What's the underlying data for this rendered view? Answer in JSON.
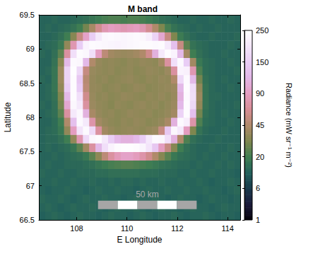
{
  "chart_data": {
    "type": "heatmap",
    "title": "M band",
    "x_label": "E Longitude",
    "y_label": "Latitude",
    "xlim": [
      106.5,
      114.5
    ],
    "xticks": [
      108,
      110,
      112,
      114
    ],
    "ylim": [
      66.5,
      69.5
    ],
    "yticks": [
      66.5,
      67,
      67.5,
      68,
      68.5,
      69,
      69.5
    ],
    "grid": false,
    "x": [
      106.625,
      106.875,
      107.125,
      107.375,
      107.625,
      107.875,
      108.125,
      108.375,
      108.625,
      108.875,
      109.125,
      109.375,
      109.625,
      109.875,
      110.125,
      110.375,
      110.625,
      110.875,
      111.125,
      111.375,
      111.625,
      111.875,
      112.125,
      112.375,
      112.625,
      112.875,
      113.125,
      113.375,
      113.625,
      113.875,
      114.125,
      114.375
    ],
    "y": [
      66.5625,
      66.6875,
      66.8125,
      66.9375,
      67.0625,
      67.1875,
      67.3125,
      67.4375,
      67.5625,
      67.6875,
      67.8125,
      67.9375,
      68.0625,
      68.1875,
      68.3125,
      68.4375,
      68.5625,
      68.6875,
      68.8125,
      68.9375,
      69.0625,
      69.1875,
      69.3125,
      69.4375
    ],
    "values": [
      [
        11,
        12,
        13,
        12,
        11,
        12,
        13,
        12,
        12,
        11,
        12,
        13,
        12,
        12,
        11,
        12,
        13,
        12,
        11,
        12,
        12,
        13,
        12,
        11,
        12,
        12,
        13,
        12,
        11,
        12,
        12,
        11
      ],
      [
        12,
        13,
        12,
        11,
        12,
        13,
        12,
        12,
        13,
        12,
        11,
        12,
        13,
        12,
        12,
        13,
        12,
        11,
        12,
        13,
        12,
        12,
        11,
        12,
        13,
        12,
        12,
        11,
        12,
        13,
        12,
        12
      ],
      [
        13,
        12,
        12,
        13,
        12,
        11,
        12,
        13,
        12,
        12,
        13,
        12,
        12,
        11,
        12,
        13,
        12,
        12,
        13,
        12,
        11,
        12,
        13,
        12,
        12,
        11,
        12,
        13,
        12,
        12,
        11,
        12
      ],
      [
        12,
        11,
        12,
        12,
        13,
        12,
        12,
        11,
        12,
        13,
        12,
        12,
        13,
        12,
        12,
        11,
        12,
        13,
        12,
        12,
        13,
        12,
        12,
        13,
        12,
        12,
        13,
        12,
        12,
        11,
        12,
        13
      ],
      [
        12,
        12,
        13,
        12,
        12,
        13,
        12,
        12,
        13,
        12,
        12,
        13,
        12,
        13,
        13,
        12,
        13,
        12,
        12,
        13,
        12,
        12,
        13,
        12,
        12,
        13,
        12,
        11,
        12,
        12,
        13,
        12
      ],
      [
        13,
        12,
        12,
        13,
        12,
        12,
        13,
        13,
        13,
        14,
        14,
        15,
        15,
        15,
        15,
        15,
        14,
        14,
        14,
        13,
        13,
        13,
        12,
        12,
        13,
        12,
        12,
        13,
        12,
        12,
        12,
        11
      ],
      [
        12,
        13,
        12,
        12,
        13,
        13,
        13,
        14,
        15,
        17,
        19,
        21,
        22,
        23,
        23,
        22,
        21,
        20,
        18,
        16,
        15,
        14,
        13,
        13,
        12,
        13,
        12,
        12,
        13,
        12,
        13,
        12
      ],
      [
        12,
        12,
        13,
        12,
        13,
        14,
        15,
        18,
        24,
        34,
        50,
        70,
        85,
        95,
        95,
        88,
        75,
        60,
        45,
        32,
        24,
        18,
        15,
        14,
        13,
        12,
        13,
        12,
        12,
        13,
        12,
        12
      ],
      [
        12,
        13,
        12,
        13,
        14,
        17,
        24,
        40,
        70,
        120,
        180,
        220,
        240,
        245,
        245,
        240,
        225,
        190,
        140,
        90,
        55,
        32,
        20,
        15,
        13,
        12,
        12,
        13,
        12,
        12,
        13,
        12
      ],
      [
        12,
        13,
        13,
        15,
        20,
        35,
        80,
        170,
        230,
        240,
        200,
        150,
        120,
        110,
        110,
        120,
        150,
        200,
        235,
        230,
        180,
        110,
        45,
        22,
        15,
        13,
        12,
        12,
        13,
        12,
        12,
        12
      ],
      [
        12,
        13,
        14,
        18,
        35,
        90,
        190,
        235,
        170,
        70,
        40,
        36,
        34,
        35,
        36,
        35,
        34,
        36,
        38,
        55,
        140,
        230,
        200,
        90,
        30,
        16,
        13,
        12,
        12,
        13,
        12,
        12
      ],
      [
        12,
        12,
        14,
        20,
        45,
        130,
        235,
        200,
        75,
        40,
        36,
        34,
        33,
        35,
        34,
        36,
        35,
        33,
        34,
        36,
        42,
        110,
        235,
        210,
        75,
        22,
        14,
        13,
        12,
        12,
        13,
        12
      ],
      [
        12,
        13,
        15,
        24,
        70,
        200,
        230,
        110,
        42,
        36,
        34,
        35,
        33,
        34,
        36,
        35,
        34,
        35,
        33,
        34,
        36,
        40,
        160,
        240,
        130,
        28,
        15,
        13,
        12,
        13,
        12,
        12
      ],
      [
        13,
        12,
        15,
        28,
        100,
        230,
        200,
        70,
        38,
        35,
        34,
        32,
        35,
        34,
        33,
        35,
        36,
        34,
        35,
        33,
        35,
        38,
        120,
        240,
        170,
        35,
        16,
        13,
        12,
        12,
        12,
        13
      ],
      [
        12,
        13,
        16,
        30,
        120,
        240,
        180,
        60,
        37,
        34,
        35,
        33,
        34,
        36,
        35,
        34,
        33,
        35,
        34,
        36,
        34,
        37,
        110,
        235,
        180,
        38,
        16,
        13,
        13,
        12,
        12,
        12
      ],
      [
        12,
        13,
        17,
        35,
        150,
        240,
        150,
        50,
        36,
        35,
        33,
        34,
        35,
        33,
        34,
        36,
        35,
        33,
        34,
        35,
        36,
        38,
        120,
        240,
        175,
        35,
        16,
        13,
        12,
        12,
        13,
        12
      ],
      [
        13,
        12,
        17,
        38,
        160,
        240,
        140,
        48,
        36,
        34,
        35,
        33,
        34,
        35,
        36,
        34,
        33,
        35,
        34,
        36,
        35,
        45,
        170,
        235,
        120,
        28,
        15,
        13,
        12,
        13,
        12,
        12
      ],
      [
        12,
        13,
        17,
        38,
        160,
        245,
        170,
        55,
        37,
        35,
        34,
        35,
        33,
        34,
        35,
        33,
        34,
        36,
        35,
        34,
        38,
        70,
        220,
        215,
        80,
        22,
        14,
        13,
        12,
        12,
        12,
        13
      ],
      [
        12,
        12,
        16,
        32,
        120,
        235,
        230,
        120,
        45,
        36,
        34,
        35,
        34,
        33,
        35,
        34,
        36,
        35,
        34,
        40,
        70,
        180,
        235,
        150,
        40,
        18,
        14,
        13,
        12,
        12,
        13,
        12
      ],
      [
        13,
        12,
        15,
        24,
        70,
        180,
        240,
        230,
        180,
        90,
        50,
        40,
        38,
        37,
        38,
        40,
        45,
        60,
        110,
        200,
        240,
        220,
        120,
        40,
        20,
        15,
        13,
        12,
        12,
        13,
        12,
        12
      ],
      [
        12,
        13,
        14,
        18,
        35,
        80,
        150,
        220,
        240,
        235,
        230,
        225,
        220,
        225,
        230,
        235,
        240,
        240,
        235,
        240,
        200,
        130,
        55,
        24,
        16,
        14,
        13,
        12,
        12,
        12,
        13,
        12
      ],
      [
        12,
        12,
        13,
        15,
        20,
        32,
        55,
        95,
        150,
        200,
        230,
        235,
        230,
        225,
        230,
        235,
        230,
        210,
        160,
        100,
        55,
        30,
        19,
        15,
        13,
        12,
        12,
        13,
        12,
        12,
        12,
        13
      ],
      [
        12,
        13,
        12,
        13,
        14,
        16,
        20,
        28,
        42,
        60,
        80,
        90,
        85,
        80,
        85,
        90,
        80,
        62,
        45,
        30,
        21,
        16,
        14,
        13,
        12,
        13,
        12,
        12,
        13,
        12,
        12,
        12
      ],
      [
        12,
        12,
        13,
        12,
        12,
        13,
        14,
        15,
        17,
        19,
        21,
        22,
        22,
        21,
        22,
        22,
        21,
        19,
        17,
        15,
        14,
        13,
        12,
        12,
        13,
        12,
        12,
        13,
        12,
        12,
        13,
        12
      ]
    ],
    "colorbar": {
      "label": "Radiance (mW sr⁻¹ m⁻²)",
      "range": [
        1,
        250
      ],
      "ticks": [
        1,
        6,
        20,
        45,
        90,
        150,
        250
      ]
    },
    "annotations": [
      {
        "text": "50 km",
        "x": [
          108.85,
          112.77
        ],
        "y": 66.72
      }
    ]
  }
}
